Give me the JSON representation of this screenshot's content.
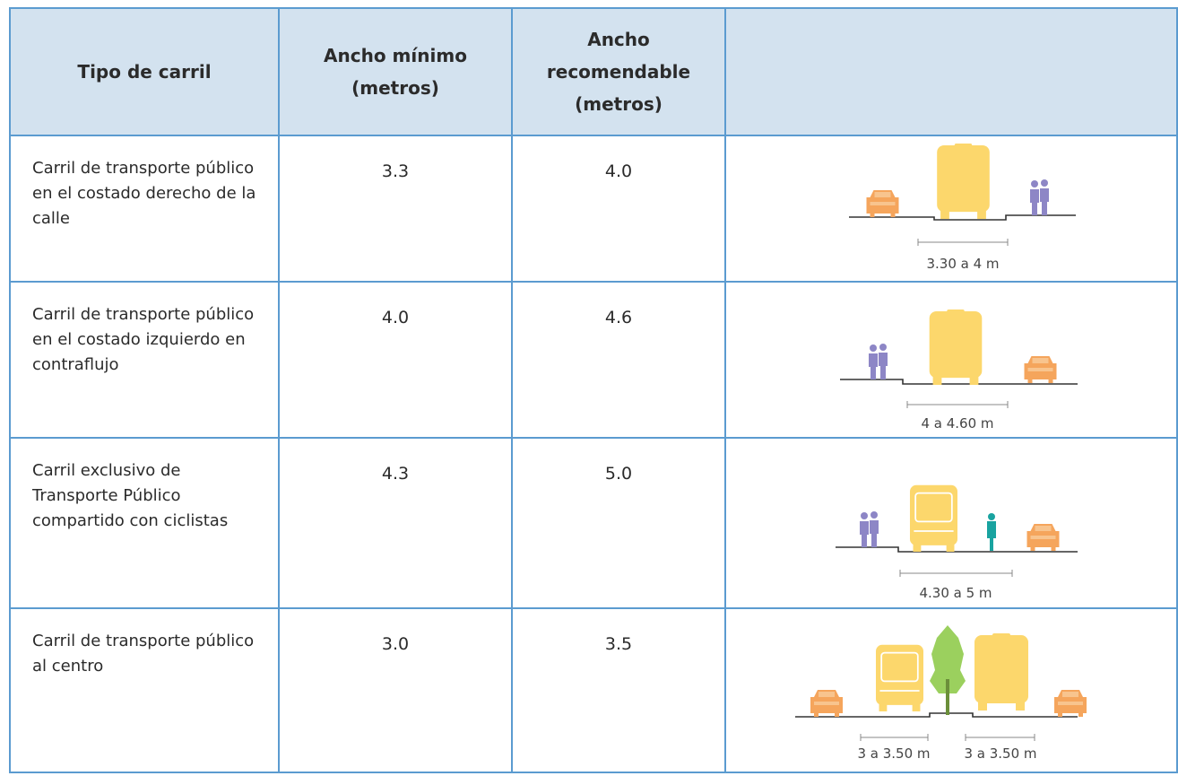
{
  "header": {
    "columns": [
      "Tipo de carril",
      "Ancho mínimo (metros)",
      "Ancho recomendable (metros)"
    ]
  },
  "table": {
    "rows": [
      {
        "label": "Carril de transporte público en el costado derecho de la calle",
        "min": "3.3",
        "rec": "4.0",
        "captions": [
          "3.30 a 4 m"
        ]
      },
      {
        "label": "Carril de transporte público en el costado izquierdo en contraflujo",
        "min": "4.0",
        "rec": "4.6",
        "captions": [
          "4 a 4.60 m"
        ]
      },
      {
        "label": "Carril exclusivo de Transporte Público compartido con ciclistas",
        "min": "4.3",
        "rec": "5.0",
        "captions": [
          "4.30 a 5 m"
        ]
      },
      {
        "label": "Carril de transporte público al centro",
        "min": "3.0",
        "rec": "3.5",
        "captions": [
          "3 a 3.50 m",
          "3 a 3.50 m"
        ]
      }
    ]
  }
}
